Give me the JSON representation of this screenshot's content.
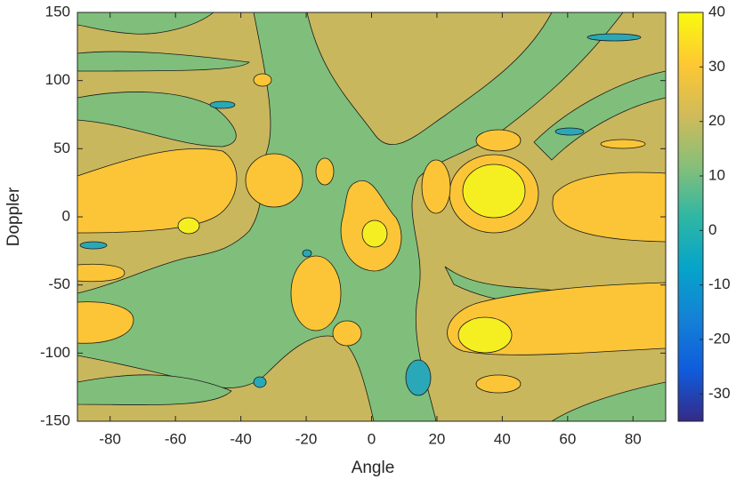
{
  "chart_data": {
    "type": "contourf",
    "xlabel": "Angle",
    "ylabel": "Doppler",
    "xlim": [
      -90,
      90
    ],
    "ylim": [
      -150,
      150
    ],
    "xticks": [
      -80,
      -60,
      -40,
      -20,
      0,
      20,
      40,
      60,
      80
    ],
    "yticks": [
      -150,
      -100,
      -50,
      0,
      50,
      100,
      150
    ],
    "colorbar": {
      "clim": [
        -35,
        40
      ],
      "ticks": [
        -30,
        -20,
        -10,
        0,
        10,
        20,
        30,
        40
      ],
      "colormap": [
        "#352a87",
        "#0f5cdd",
        "#1481d6",
        "#06a4ca",
        "#2eb7a4",
        "#87bf77",
        "#d1bb59",
        "#fec832",
        "#f9fb0e"
      ]
    }
  }
}
